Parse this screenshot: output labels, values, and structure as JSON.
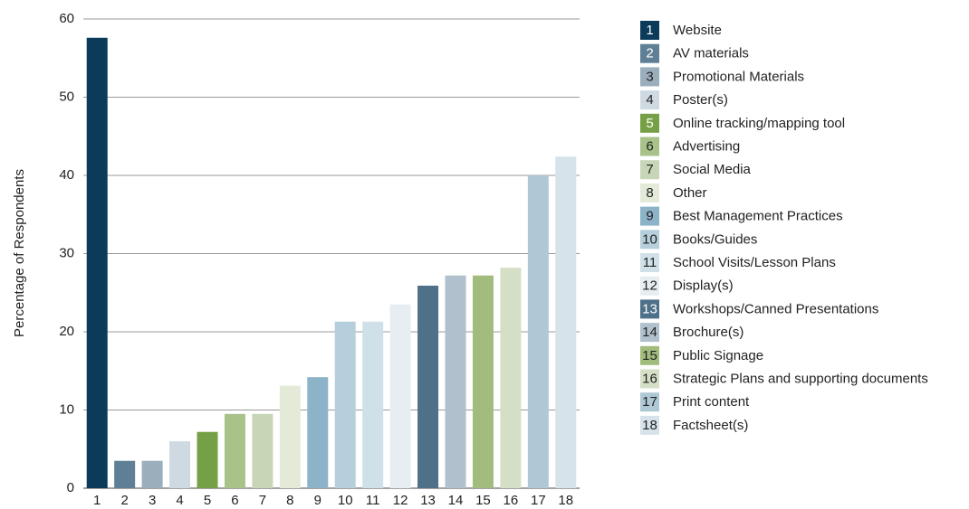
{
  "chart_data": {
    "type": "bar",
    "y_axis_label": "Percentage of Respondents",
    "categories": [
      "1",
      "2",
      "3",
      "4",
      "5",
      "6",
      "7",
      "8",
      "9",
      "10",
      "11",
      "12",
      "13",
      "14",
      "15",
      "16",
      "17",
      "18"
    ],
    "legend": [
      "Website",
      "AV materials",
      "Promotional Materials",
      "Poster(s)",
      "Online tracking/mapping tool",
      "Advertising",
      "Social Media",
      "Other",
      "Best Management Practices",
      "Books/Guides",
      "School Visits/Lesson Plans",
      "Display(s)",
      "Workshops/Canned Presentations",
      "Brochure(s)",
      "Public Signage",
      "Strategic Plans and supporting documents",
      "Print content",
      "Factsheet(s)"
    ],
    "values": [
      57.6,
      3.5,
      3.5,
      6.0,
      7.2,
      9.5,
      9.5,
      13.1,
      14.2,
      21.3,
      21.3,
      23.5,
      25.9,
      27.2,
      27.2,
      28.2,
      40.0,
      42.4
    ],
    "colors": [
      "#0b3a5a",
      "#5e7f95",
      "#9aaebc",
      "#cfd9e1",
      "#76a045",
      "#a9c28a",
      "#c8d6b8",
      "#e4ead8",
      "#8db3c9",
      "#b6cfdc",
      "#cfe0e8",
      "#e6eef2",
      "#4f7089",
      "#b0c0cc",
      "#a2bc7e",
      "#d4dfc6",
      "#afc8d6",
      "#d6e3eb"
    ],
    "ylim": [
      0,
      60
    ],
    "yticks": [
      0,
      10,
      20,
      30,
      40,
      50,
      60
    ],
    "grid": true,
    "legend_position": "right"
  }
}
